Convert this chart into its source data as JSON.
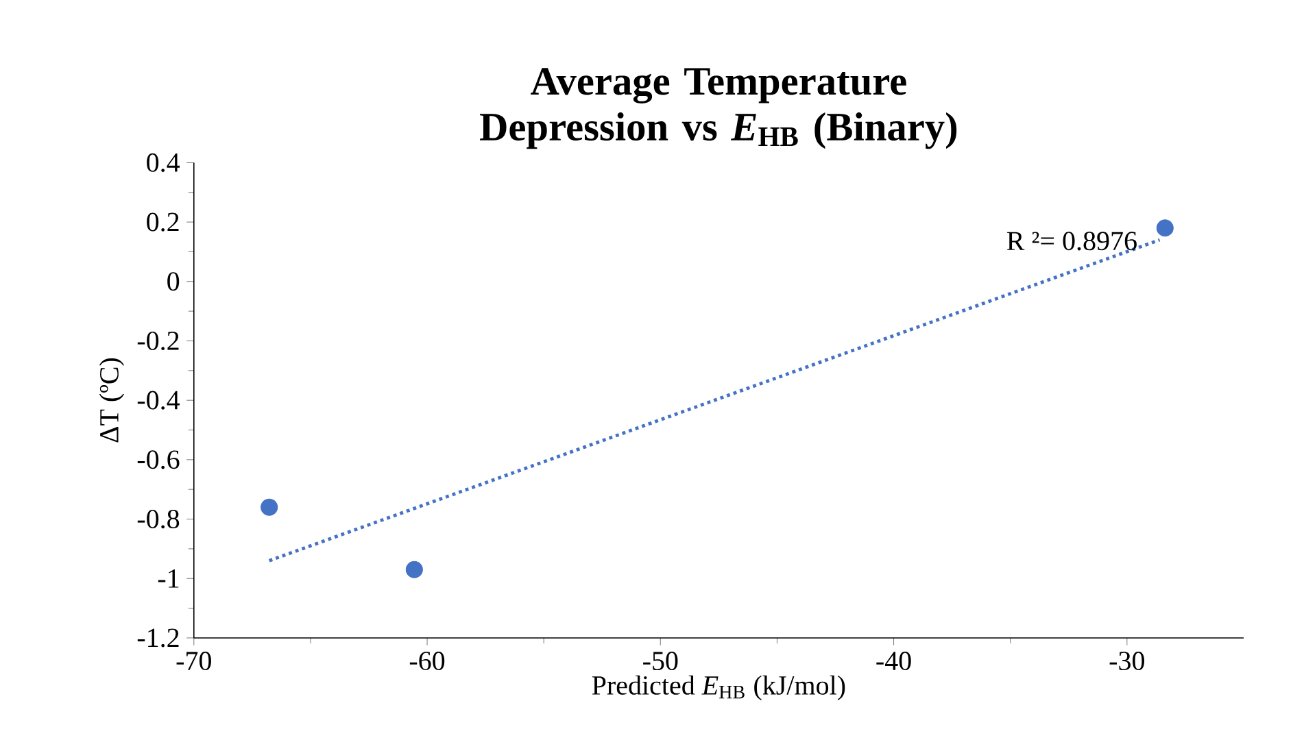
{
  "chart_data": {
    "type": "scatter",
    "title": "Average Temperature Depression vs *E*$_{HB}$ (Binary)",
    "xlabel": "Predicted *E*$_{HB}$ (kJ/mol)",
    "ylabel": "ΔT (ºC)",
    "series": [
      {
        "color": "#4472c4",
        "x": [
          -66.77,
          -60.55,
          -28.37
        ],
        "values": [
          -0.76,
          -0.97,
          0.18
        ],
        "marker": "circle"
      },
      {
        "type": "line",
        "color": "#4472c4",
        "x": [
          -66.77,
          -28.6
        ],
        "values": [
          -0.94,
          0.14
        ],
        "line_style": "dotted",
        "marker": "none"
      }
    ],
    "annotations": [
      "R ²= 0.8976"
    ],
    "xlim": [
      -70,
      -25
    ],
    "xticks": [
      -70,
      -60,
      -50,
      -40,
      -30
    ],
    "ylim": [
      -1.2,
      0.4
    ],
    "yticks": [
      -1.2,
      -1,
      -0.8,
      -0.6,
      -0.4,
      -0.2,
      0,
      0.2,
      0.4
    ],
    "grid": false
  }
}
